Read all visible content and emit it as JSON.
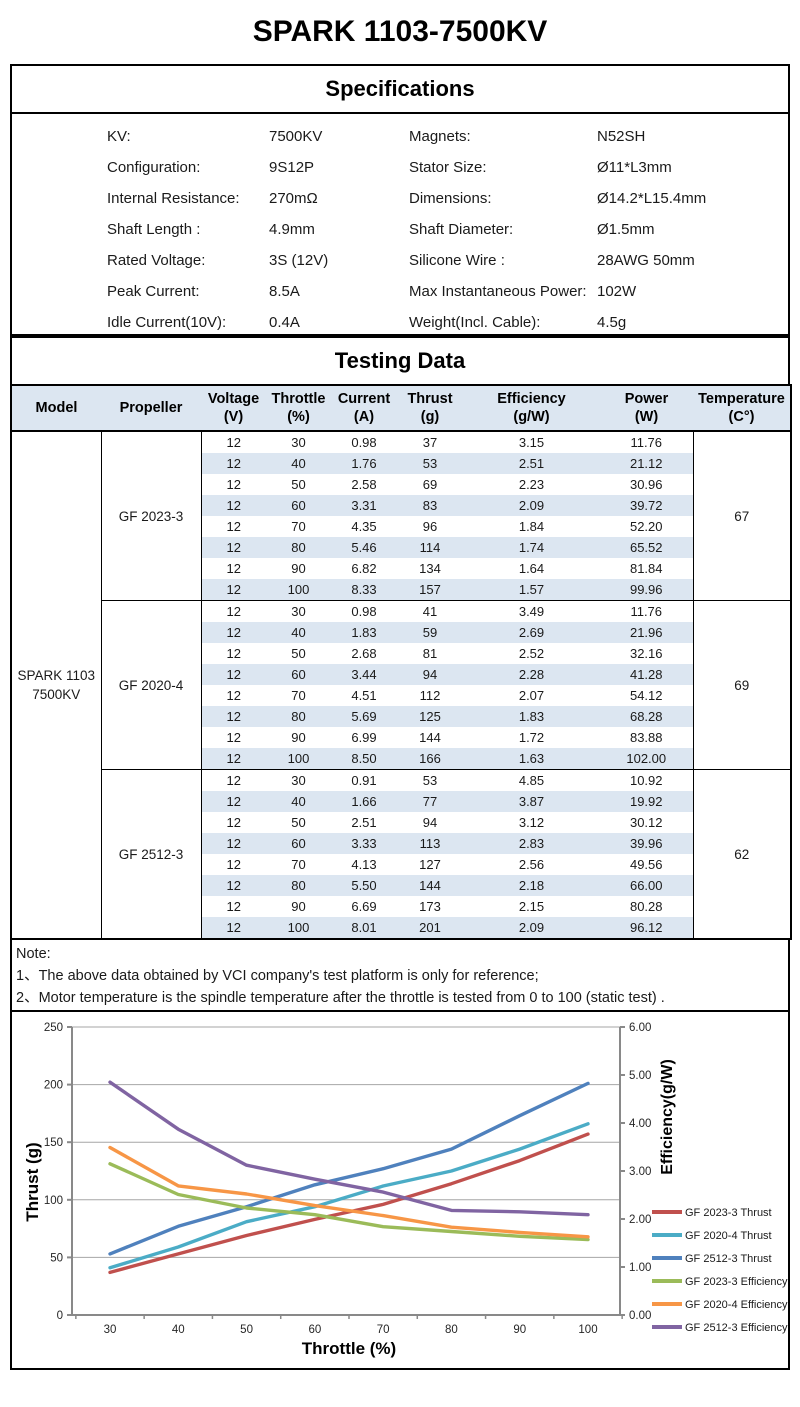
{
  "page_title": "SPARK 1103-7500KV",
  "specifications": {
    "title": "Specifications",
    "rows": [
      {
        "label1": "KV:",
        "value1": "7500KV",
        "label2": "Magnets:",
        "value2": "N52SH"
      },
      {
        "label1": "Configuration:",
        "value1": "9S12P",
        "label2": "Stator Size:",
        "value2": "Ø11*L3mm"
      },
      {
        "label1": "Internal Resistance:",
        "value1": "270mΩ",
        "label2": "Dimensions:",
        "value2": "Ø14.2*L15.4mm"
      },
      {
        "label1": "Shaft Length :",
        "value1": "4.9mm",
        "label2": "Shaft Diameter:",
        "value2": "Ø1.5mm"
      },
      {
        "label1": "Rated Voltage:",
        "value1": "3S (12V)",
        "label2": "Silicone Wire :",
        "value2": "28AWG 50mm"
      },
      {
        "label1": "Peak Current:",
        "value1": "8.5A",
        "label2": "Max Instantaneous Power:",
        "value2": "102W"
      },
      {
        "label1": "Idle Current(10V):",
        "value1": "0.4A",
        "label2": "Weight(Incl. Cable):",
        "value2": "4.5g"
      }
    ]
  },
  "testing": {
    "title": "Testing Data",
    "columns": [
      {
        "label": "Model",
        "unit": ""
      },
      {
        "label": "Propeller",
        "unit": ""
      },
      {
        "label": "Voltage",
        "unit": "(V)"
      },
      {
        "label": "Throttle",
        "unit": "(%)"
      },
      {
        "label": "Current",
        "unit": "(A)"
      },
      {
        "label": "Thrust",
        "unit": "(g)"
      },
      {
        "label": "Efficiency",
        "unit": "(g/W)"
      },
      {
        "label": "Power",
        "unit": "(W)"
      },
      {
        "label": "Temperature",
        "unit": "(C°)"
      }
    ],
    "model_lines": [
      "SPARK 1103",
      "7500KV"
    ],
    "groups": [
      {
        "propeller": "GF 2023-3",
        "temperature": "67",
        "rows": [
          [
            "12",
            "30",
            "0.98",
            "37",
            "3.15",
            "11.76"
          ],
          [
            "12",
            "40",
            "1.76",
            "53",
            "2.51",
            "21.12"
          ],
          [
            "12",
            "50",
            "2.58",
            "69",
            "2.23",
            "30.96"
          ],
          [
            "12",
            "60",
            "3.31",
            "83",
            "2.09",
            "39.72"
          ],
          [
            "12",
            "70",
            "4.35",
            "96",
            "1.84",
            "52.20"
          ],
          [
            "12",
            "80",
            "5.46",
            "114",
            "1.74",
            "65.52"
          ],
          [
            "12",
            "90",
            "6.82",
            "134",
            "1.64",
            "81.84"
          ],
          [
            "12",
            "100",
            "8.33",
            "157",
            "1.57",
            "99.96"
          ]
        ]
      },
      {
        "propeller": "GF 2020-4",
        "temperature": "69",
        "rows": [
          [
            "12",
            "30",
            "0.98",
            "41",
            "3.49",
            "11.76"
          ],
          [
            "12",
            "40",
            "1.83",
            "59",
            "2.69",
            "21.96"
          ],
          [
            "12",
            "50",
            "2.68",
            "81",
            "2.52",
            "32.16"
          ],
          [
            "12",
            "60",
            "3.44",
            "94",
            "2.28",
            "41.28"
          ],
          [
            "12",
            "70",
            "4.51",
            "112",
            "2.07",
            "54.12"
          ],
          [
            "12",
            "80",
            "5.69",
            "125",
            "1.83",
            "68.28"
          ],
          [
            "12",
            "90",
            "6.99",
            "144",
            "1.72",
            "83.88"
          ],
          [
            "12",
            "100",
            "8.50",
            "166",
            "1.63",
            "102.00"
          ]
        ]
      },
      {
        "propeller": "GF 2512-3",
        "temperature": "62",
        "rows": [
          [
            "12",
            "30",
            "0.91",
            "53",
            "4.85",
            "10.92"
          ],
          [
            "12",
            "40",
            "1.66",
            "77",
            "3.87",
            "19.92"
          ],
          [
            "12",
            "50",
            "2.51",
            "94",
            "3.12",
            "30.12"
          ],
          [
            "12",
            "60",
            "3.33",
            "113",
            "2.83",
            "39.96"
          ],
          [
            "12",
            "70",
            "4.13",
            "127",
            "2.56",
            "49.56"
          ],
          [
            "12",
            "80",
            "5.50",
            "144",
            "2.18",
            "66.00"
          ],
          [
            "12",
            "90",
            "6.69",
            "173",
            "2.15",
            "80.28"
          ],
          [
            "12",
            "100",
            "8.01",
            "201",
            "2.09",
            "96.12"
          ]
        ]
      }
    ]
  },
  "note": {
    "title": "Note:",
    "lines": [
      "1、The above data obtained by VCI company's test platform is only for reference;",
      "2、Motor temperature is the spindle temperature after the throttle is tested from 0 to 100 (static test) ."
    ]
  },
  "chart_data": {
    "type": "line",
    "x": [
      30,
      40,
      50,
      60,
      70,
      80,
      90,
      100
    ],
    "xlabel": "Throttle (%)",
    "ylabel_left": "Thrust (g)",
    "ylabel_right": "Efficiency(g/W)",
    "ylim_left": [
      0,
      250
    ],
    "ylim_right": [
      0,
      6
    ],
    "left_ticks": [
      "0",
      "50",
      "100",
      "150",
      "200",
      "250"
    ],
    "right_ticks": [
      "0.00",
      "1.00",
      "2.00",
      "3.00",
      "4.00",
      "5.00",
      "6.00"
    ],
    "grid": true,
    "legend_position": "right",
    "colors": {
      "grid": "#a6a6a6",
      "axis": "#898989",
      "band_blue": "#dce6f1"
    },
    "series": [
      {
        "name": "GF 2023-3 Thrust",
        "axis": "left",
        "color": "#C0504D",
        "values": [
          37,
          53,
          69,
          83,
          96,
          114,
          134,
          157
        ]
      },
      {
        "name": "GF 2020-4 Thrust",
        "axis": "left",
        "color": "#4BACC6",
        "values": [
          41,
          59,
          81,
          94,
          112,
          125,
          144,
          166
        ]
      },
      {
        "name": "GF 2512-3 Thrust",
        "axis": "left",
        "color": "#4F81BD",
        "values": [
          53,
          77,
          94,
          113,
          127,
          144,
          173,
          201
        ]
      },
      {
        "name": "GF 2023-3 Efficiency",
        "axis": "right",
        "color": "#9BBB59",
        "values": [
          3.15,
          2.51,
          2.23,
          2.09,
          1.84,
          1.74,
          1.64,
          1.57
        ]
      },
      {
        "name": "GF 2020-4 Efficiency",
        "axis": "right",
        "color": "#F79646",
        "values": [
          3.49,
          2.69,
          2.52,
          2.28,
          2.07,
          1.83,
          1.72,
          1.63
        ]
      },
      {
        "name": "GF 2512-3 Efficiency",
        "axis": "right",
        "color": "#8064A2",
        "values": [
          4.85,
          3.87,
          3.12,
          2.83,
          2.56,
          2.18,
          2.15,
          2.09
        ]
      }
    ]
  }
}
